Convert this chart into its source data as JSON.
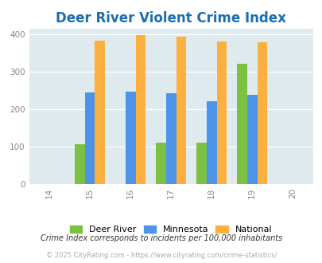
{
  "title": "Deer River Violent Crime Index",
  "years": [
    2015,
    2016,
    2017,
    2018,
    2019
  ],
  "deer_river": [
    107,
    0,
    110,
    110,
    322
  ],
  "minnesota": [
    246,
    247,
    244,
    222,
    239
  ],
  "national": [
    384,
    398,
    394,
    381,
    379
  ],
  "xlim": [
    2013.5,
    2020.5
  ],
  "ylim": [
    0,
    415
  ],
  "yticks": [
    0,
    100,
    200,
    300,
    400
  ],
  "xticks": [
    2014,
    2015,
    2016,
    2017,
    2018,
    2019,
    2020
  ],
  "xtick_labels": [
    "14",
    "15",
    "16",
    "17",
    "18",
    "19",
    "20"
  ],
  "bar_width": 0.25,
  "color_deer": "#7dc142",
  "color_mn": "#4d94e8",
  "color_national": "#fbb040",
  "bg_color": "#deeaee",
  "title_color": "#1a6faf",
  "title_fontsize": 12,
  "legend_labels": [
    "Deer River",
    "Minnesota",
    "National"
  ],
  "footnote1": "Crime Index corresponds to incidents per 100,000 inhabitants",
  "footnote2": "© 2025 CityRating.com - https://www.cityrating.com/crime-statistics/"
}
